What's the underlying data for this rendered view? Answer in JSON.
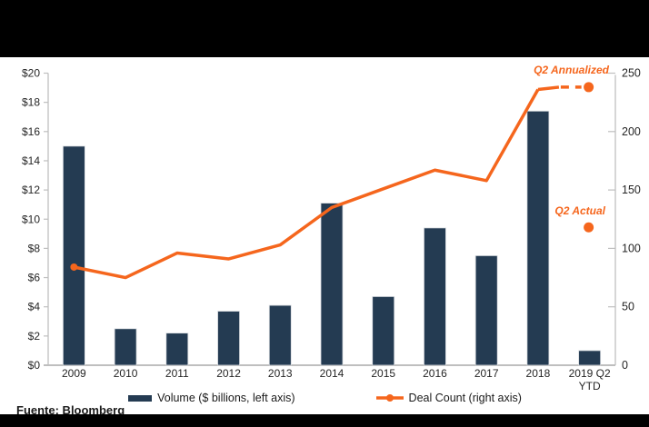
{
  "chart_data": {
    "type": "bar",
    "subtype": "combo-bar-line",
    "categories": [
      "2009",
      "2010",
      "2011",
      "2012",
      "2013",
      "2014",
      "2015",
      "2016",
      "2017",
      "2018",
      "2019 Q2 YTD"
    ],
    "series": [
      {
        "name": "Volume ($ billions, left axis)",
        "type": "bar",
        "axis": "left",
        "color": "#243B52",
        "values": [
          15.0,
          2.5,
          2.2,
          3.7,
          4.1,
          11.1,
          4.7,
          9.4,
          7.5,
          17.4,
          1.0
        ]
      },
      {
        "name": "Deal Count (right axis)",
        "type": "line",
        "axis": "right",
        "color": "#F5661D",
        "values": [
          84,
          75,
          96,
          91,
          103,
          135,
          151,
          167,
          158,
          236
        ]
      }
    ],
    "extra_points": [
      {
        "label": "Q2 Annualized",
        "value": 238,
        "category": "2019 Q2 YTD",
        "style": "dashed-projection-dot"
      },
      {
        "label": "Q2 Actual",
        "value": 118,
        "category": "2019 Q2 YTD",
        "style": "dot"
      }
    ],
    "left_axis": {
      "min": 0,
      "max": 20,
      "step": 2,
      "tick_labels": [
        "$0",
        "$2",
        "$4",
        "$6",
        "$8",
        "$10",
        "$12",
        "$14",
        "$16",
        "$18",
        "$20"
      ]
    },
    "right_axis": {
      "min": 0,
      "max": 250,
      "step": 50,
      "tick_labels": [
        "0",
        "50",
        "100",
        "150",
        "200",
        "250"
      ]
    },
    "grid": false,
    "legend_position": "bottom",
    "title": ""
  },
  "legend": {
    "items": [
      {
        "label": "Volume ($ billions, left axis)"
      },
      {
        "label": "Deal Count (right axis)"
      }
    ]
  },
  "source": {
    "text": "Fuente: Bloomberg"
  },
  "colors": {
    "bar": "#243B52",
    "line": "#F5661D",
    "axis": "#BFBFBF",
    "tick_text": "#262626",
    "annotation": "#F5661D",
    "band": "#000000"
  }
}
